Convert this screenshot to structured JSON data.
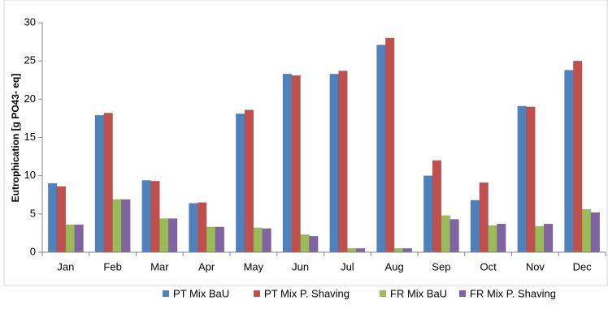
{
  "chart_data": {
    "type": "bar",
    "y_label": "Eutrophication [g PO43- eq]",
    "categories": [
      "Jan",
      "Feb",
      "Mar",
      "Apr",
      "May",
      "Jun",
      "Jul",
      "Aug",
      "Sep",
      "Oct",
      "Nov",
      "Dec"
    ],
    "series": [
      {
        "name": "PT Mix BaU",
        "color": "#4f81bd",
        "values": [
          9.0,
          17.9,
          9.4,
          6.4,
          18.1,
          23.3,
          23.3,
          27.1,
          10.0,
          6.8,
          19.1,
          23.8
        ]
      },
      {
        "name": "PT Mix P. Shaving",
        "color": "#c0504d",
        "values": [
          8.6,
          18.2,
          9.3,
          6.5,
          18.6,
          23.1,
          23.7,
          28.0,
          12.0,
          9.1,
          19.0,
          25.0
        ]
      },
      {
        "name": "FR Mix BaU",
        "color": "#9bbb59",
        "values": [
          3.6,
          6.9,
          4.4,
          3.3,
          3.2,
          2.3,
          0.5,
          0.5,
          4.8,
          3.5,
          3.4,
          5.6
        ]
      },
      {
        "name": "FR Mix P. Shaving",
        "color": "#8064a2",
        "values": [
          3.6,
          6.9,
          4.4,
          3.3,
          3.1,
          2.1,
          0.5,
          0.5,
          4.3,
          3.7,
          3.7,
          5.2
        ]
      }
    ],
    "ylim": [
      0,
      30
    ],
    "yticks": [
      0,
      5,
      10,
      15,
      20,
      25,
      30
    ],
    "grid": false,
    "legend": "bottom"
  }
}
